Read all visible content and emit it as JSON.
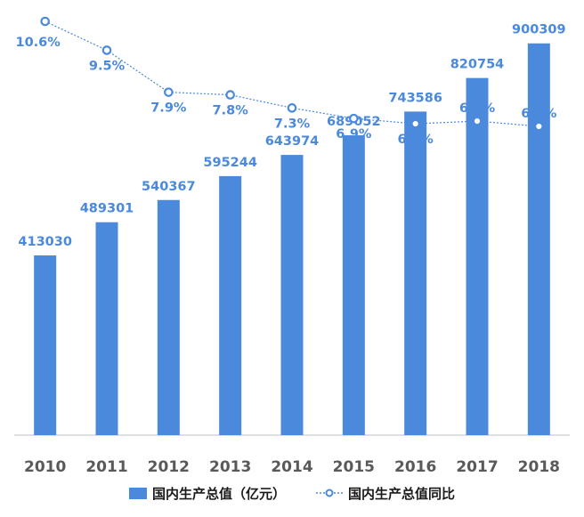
{
  "chart_data": {
    "type": "bar",
    "categories": [
      "2010",
      "2011",
      "2012",
      "2013",
      "2014",
      "2015",
      "2016",
      "2017",
      "2018"
    ],
    "series": [
      {
        "name": "国内生产总值（亿元）",
        "type": "bar",
        "values": [
          413030,
          489301,
          540367,
          595244,
          643974,
          689052,
          743586,
          820754,
          900309
        ],
        "labels": [
          "413030",
          "489301",
          "540367",
          "595244",
          "643974",
          "689052",
          "743586",
          "820754",
          "900309"
        ]
      },
      {
        "name": "国内生产总值同比",
        "type": "line",
        "values": [
          10.6,
          9.5,
          7.9,
          7.8,
          7.3,
          6.9,
          6.7,
          6.8,
          6.6
        ],
        "labels": [
          "10.6%",
          "9.5%",
          "7.9%",
          "7.8%",
          "7.3%",
          "6.9%",
          "6.7%",
          "6.8%",
          "6.6%"
        ]
      }
    ],
    "legend_position": "bottom",
    "grid": false,
    "bar_ylim": [
      0,
      1000000
    ],
    "line_ylim": [
      6.0,
      11.0
    ]
  },
  "colors": {
    "bar": "#4a89dc",
    "line": "#4a89dc",
    "label": "#4a89dc",
    "axis": "#bfbfbf",
    "tick": "#595959"
  }
}
